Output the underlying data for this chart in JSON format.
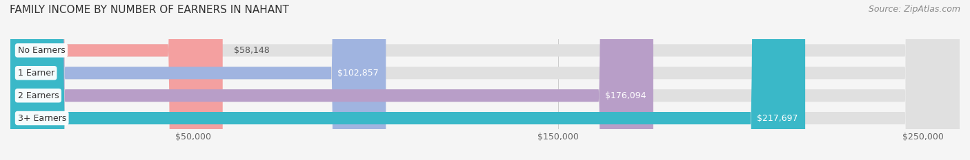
{
  "title": "FAMILY INCOME BY NUMBER OF EARNERS IN NAHANT",
  "source": "Source: ZipAtlas.com",
  "categories": [
    "No Earners",
    "1 Earner",
    "2 Earners",
    "3+ Earners"
  ],
  "values": [
    58148,
    102857,
    176094,
    217697
  ],
  "labels": [
    "$58,148",
    "$102,857",
    "$176,094",
    "$217,697"
  ],
  "bar_colors": [
    "#f4a0a0",
    "#a0b4e0",
    "#b89ec8",
    "#3ab8c8"
  ],
  "bar_bg_color": "#eeeeee",
  "label_bg_color": "#f5f5f5",
  "background_color": "#f5f5f5",
  "xmin": 0,
  "xmax": 260000,
  "xticks": [
    50000,
    150000,
    250000
  ],
  "xticklabels": [
    "$50,000",
    "$150,000",
    "$250,000"
  ],
  "title_fontsize": 11,
  "source_fontsize": 9,
  "bar_label_fontsize": 9,
  "category_fontsize": 9,
  "tick_fontsize": 9
}
